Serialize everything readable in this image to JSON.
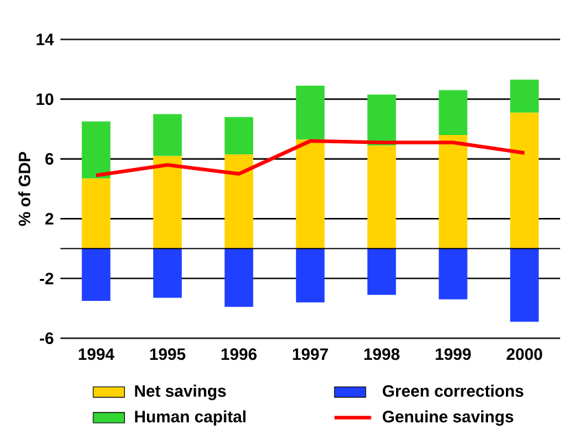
{
  "chart_data": {
    "type": "bar",
    "stacked": true,
    "ylabel": "% of GDP",
    "categories": [
      "1994",
      "1995",
      "1996",
      "1997",
      "1998",
      "1999",
      "2000"
    ],
    "series": [
      {
        "name": "Net savings",
        "color": "#ffd200",
        "values": [
          4.7,
          6.2,
          6.3,
          7.3,
          6.9,
          7.6,
          9.1
        ]
      },
      {
        "name": "Human capital",
        "color": "#33d633",
        "values": [
          3.8,
          2.8,
          2.5,
          3.6,
          3.4,
          3.0,
          2.2
        ]
      },
      {
        "name": "Green corrections",
        "color": "#2040ff",
        "values": [
          -3.5,
          -3.3,
          -3.9,
          -3.6,
          -3.1,
          -3.4,
          -4.9
        ]
      },
      {
        "name": "Genuine savings",
        "type": "line",
        "color": "#ff0000",
        "values": [
          4.9,
          5.6,
          5.0,
          7.2,
          7.1,
          7.1,
          6.4
        ]
      }
    ],
    "ylim": [
      -6,
      14
    ],
    "yticks": [
      -6,
      -2,
      2,
      6,
      10,
      14
    ],
    "grid": "y",
    "legend": "bottom"
  }
}
